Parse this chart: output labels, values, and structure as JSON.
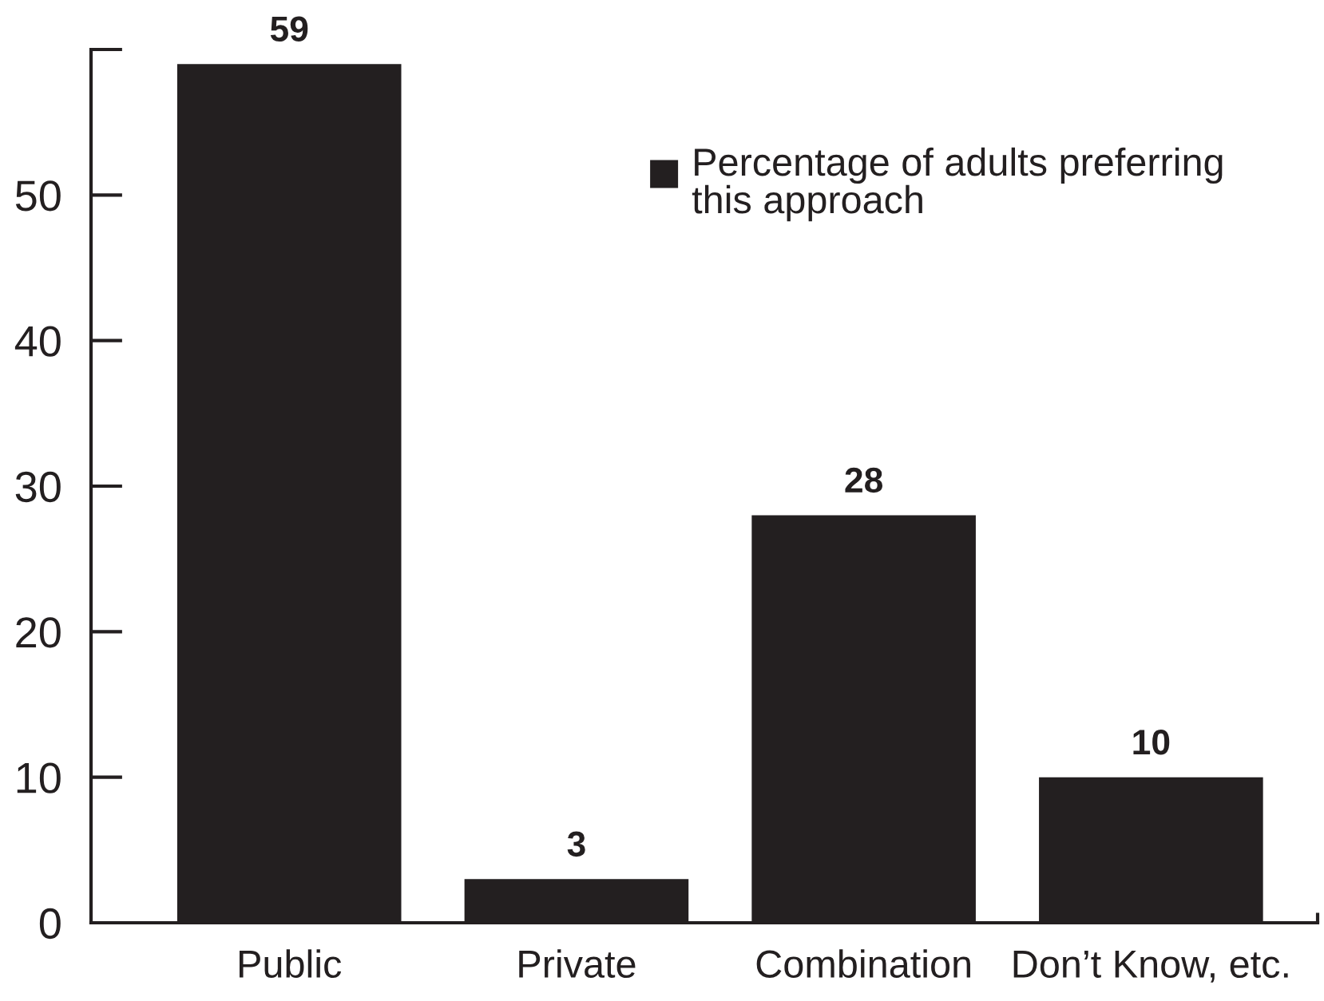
{
  "chart_data": {
    "type": "bar",
    "categories": [
      "Public",
      "Private",
      "Combination",
      "Don’t Know, etc."
    ],
    "series": [
      {
        "name": "Percentage of adults preferring\nthis approach",
        "color": "#231f20",
        "values": [
          59,
          3,
          28,
          10
        ]
      }
    ],
    "ylim": [
      0,
      60
    ],
    "yticks": [
      0,
      10,
      20,
      30,
      40,
      50
    ],
    "data_labels": true,
    "legend": "top right"
  }
}
